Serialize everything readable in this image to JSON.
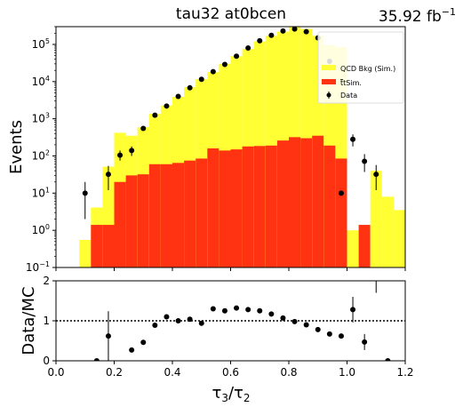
{
  "title": "tau32  at0bcen",
  "lumi": "35.92 fb",
  "lumi_exp": "−1",
  "chart_data": [
    {
      "type": "bar",
      "panel": "main",
      "ylabel": "Events",
      "yscale": "log",
      "xlim": [
        0.0,
        1.2
      ],
      "ylim": [
        0.1,
        300000
      ],
      "yticks": [
        {
          "value": 0.1,
          "base": "10",
          "exp": "−1"
        },
        {
          "value": 1,
          "base": "10",
          "exp": "0"
        },
        {
          "value": 10,
          "base": "10",
          "exp": "1"
        },
        {
          "value": 100,
          "base": "10",
          "exp": "2"
        },
        {
          "value": 1000,
          "base": "10",
          "exp": "3"
        },
        {
          "value": 10000,
          "base": "10",
          "exp": "4"
        },
        {
          "value": 100000,
          "base": "10",
          "exp": "5"
        }
      ],
      "bin_edges": [
        0.0,
        0.04,
        0.08,
        0.12,
        0.16,
        0.2,
        0.24,
        0.28,
        0.32,
        0.36,
        0.4,
        0.44,
        0.48,
        0.52,
        0.56,
        0.6,
        0.64,
        0.68,
        0.72,
        0.76,
        0.8,
        0.84,
        0.88,
        0.92,
        0.96,
        1.0,
        1.04,
        1.08,
        1.12,
        1.16,
        1.2
      ],
      "series": [
        {
          "name": "QCD Bkg (Sim.)",
          "color": "#ffff33",
          "stack": true,
          "values": [
            0,
            0,
            0.55,
            2.7,
            50,
            400,
            320,
            560,
            1300,
            2200,
            3800,
            7000,
            11500,
            18000,
            30000,
            48000,
            75000,
            120000,
            170000,
            220000,
            290000,
            260000,
            170000,
            95000,
            85000,
            1,
            0,
            40,
            8,
            3.5
          ]
        },
        {
          "name": "tt Sim.",
          "color": "#ff3311",
          "stack": true,
          "values": [
            0,
            0,
            0,
            1.4,
            1.4,
            20,
            30,
            32,
            60,
            60,
            65,
            75,
            85,
            160,
            140,
            150,
            180,
            185,
            190,
            260,
            320,
            300,
            350,
            190,
            85,
            0,
            1.4,
            0,
            0,
            0
          ]
        }
      ],
      "data_points": {
        "name": "Data",
        "x": [
          0.1,
          0.18,
          0.22,
          0.26,
          0.3,
          0.34,
          0.38,
          0.42,
          0.46,
          0.5,
          0.54,
          0.58,
          0.62,
          0.66,
          0.7,
          0.74,
          0.78,
          0.82,
          0.86,
          0.9,
          0.94,
          0.98,
          1.02,
          1.06,
          1.1
        ],
        "y": [
          10,
          32,
          105,
          140,
          550,
          1250,
          2200,
          4000,
          6800,
          11500,
          18500,
          29000,
          48000,
          80000,
          125000,
          175000,
          230000,
          260000,
          220000,
          150000,
          35000,
          10,
          280,
          72,
          32
        ],
        "yerr_low": [
          8,
          20,
          30,
          40,
          0,
          0,
          0,
          0,
          0,
          0,
          0,
          0,
          0,
          0,
          0,
          0,
          0,
          0,
          0,
          0,
          0,
          0,
          100,
          35,
          20
        ],
        "yerr_high": [
          10,
          22,
          35,
          40,
          0,
          0,
          0,
          0,
          0,
          0,
          0,
          0,
          0,
          0,
          0,
          0,
          0,
          0,
          0,
          0,
          0,
          0,
          100,
          40,
          25
        ]
      },
      "legend": {
        "placement": "top-right",
        "entries": [
          "QCD Bkg (Sim.)",
          "Sim.",
          "Data"
        ],
        "tt_prefix": "t",
        "tt_prefix2": "t"
      }
    },
    {
      "type": "scatter",
      "panel": "ratio",
      "ylabel": "Data/MC",
      "xlabel": "τ",
      "xlabel_sub1": "3",
      "xlabel_sep": "/τ",
      "xlabel_sub2": "2",
      "xlim": [
        0.0,
        1.2
      ],
      "ylim": [
        0,
        2
      ],
      "xticks": [
        "0.0",
        "0.2",
        "0.4",
        "0.6",
        "0.8",
        "1.0",
        "1.2"
      ],
      "yticks": [
        "0",
        "1",
        "2"
      ],
      "reference_line": 1,
      "x": [
        0.14,
        0.18,
        0.26,
        0.3,
        0.34,
        0.38,
        0.42,
        0.46,
        0.5,
        0.54,
        0.58,
        0.62,
        0.66,
        0.7,
        0.74,
        0.78,
        0.82,
        0.86,
        0.9,
        0.94,
        0.98,
        1.02,
        1.06,
        1.1,
        1.14
      ],
      "y": [
        0,
        0.62,
        0.27,
        0.46,
        0.89,
        1.1,
        1.0,
        1.04,
        0.94,
        1.3,
        1.25,
        1.32,
        1.28,
        1.25,
        1.17,
        1.07,
        0.98,
        0.9,
        0.78,
        0.67,
        0.62,
        1.28,
        0.47,
        2.3,
        0
      ],
      "yerr": [
        0,
        0.62,
        0,
        0,
        0,
        0.06,
        0,
        0,
        0,
        0,
        0,
        0,
        0,
        0,
        0,
        0,
        0,
        0,
        0,
        0,
        0,
        0.32,
        0.2,
        0.6,
        0
      ]
    }
  ]
}
